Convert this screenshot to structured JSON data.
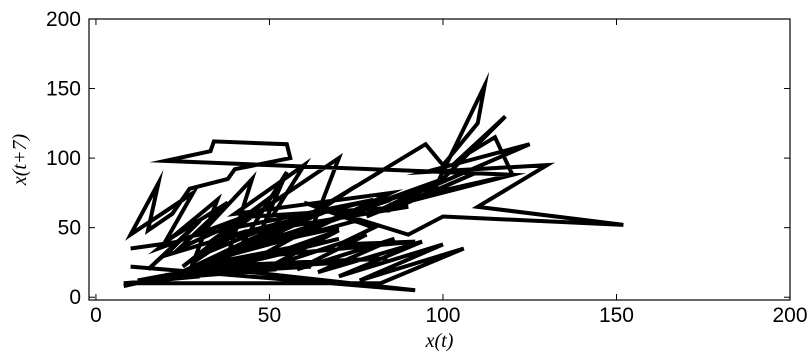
{
  "chart_data": {
    "type": "line",
    "title": "",
    "xlabel": "x(t)",
    "ylabel": "x(t+7)",
    "xlim": [
      -2,
      200
    ],
    "ylim": [
      -2,
      200
    ],
    "xticks": [
      0,
      50,
      100,
      150,
      200
    ],
    "yticks": [
      0,
      50,
      100,
      150,
      200
    ],
    "grid": false,
    "legend": "none",
    "line_color": "#000000",
    "series": [
      {
        "x": [
          10,
          24,
          15,
          30,
          20,
          40,
          28,
          35,
          18,
          45,
          25,
          52,
          33,
          60,
          38,
          45,
          30,
          70,
          42,
          55,
          48,
          35,
          80,
          50,
          60,
          40,
          85,
          62,
          70,
          45,
          90,
          58,
          75,
          52,
          95,
          100,
          110,
          112,
          98,
          118,
          105,
          115,
          120,
          88,
          125,
          95,
          130,
          110,
          152,
          100,
          90,
          60,
          80,
          70,
          92,
          50,
          70,
          35,
          60,
          20,
          45,
          15,
          30,
          8,
          25,
          12,
          40,
          18,
          55,
          22,
          65,
          28,
          50,
          32,
          75,
          38,
          60,
          42,
          70,
          48,
          85,
          55,
          90,
          62,
          95,
          68,
          80,
          72,
          100,
          78,
          92,
          84,
          110,
          88,
          98,
          92,
          120,
          20,
          33,
          34,
          55,
          56,
          40,
          38,
          27,
          22,
          15,
          18,
          10,
          28,
          20,
          38,
          24,
          46,
          30,
          54,
          36,
          62,
          44,
          70,
          50,
          78,
          58,
          86,
          64,
          94,
          70,
          100,
          76,
          106,
          82,
          8,
          30,
          12,
          42,
          16,
          52,
          20,
          62,
          24,
          72,
          26,
          84,
          30,
          92,
          10
        ],
        "y": [
          35,
          40,
          20,
          55,
          30,
          45,
          25,
          70,
          35,
          60,
          22,
          75,
          40,
          55,
          30,
          85,
          45,
          65,
          38,
          90,
          50,
          42,
          70,
          55,
          95,
          60,
          75,
          48,
          100,
          58,
          65,
          52,
          80,
          45,
          110,
          95,
          125,
          152,
          80,
          130,
          100,
          115,
          88,
          70,
          110,
          90,
          95,
          65,
          52,
          58,
          45,
          68,
          50,
          38,
          40,
          30,
          42,
          20,
          35,
          15,
          28,
          10,
          20,
          8,
          18,
          12,
          25,
          14,
          32,
          16,
          40,
          22,
          48,
          26,
          55,
          30,
          60,
          35,
          50,
          40,
          70,
          45,
          75,
          50,
          80,
          55,
          65,
          60,
          85,
          58,
          72,
          62,
          90,
          66,
          78,
          70,
          88,
          98,
          105,
          112,
          110,
          100,
          92,
          85,
          78,
          60,
          48,
          82,
          45,
          75,
          40,
          68,
          35,
          60,
          30,
          55,
          28,
          50,
          25,
          48,
          22,
          45,
          20,
          42,
          18,
          40,
          15,
          38,
          12,
          35,
          10,
          10,
          15,
          12,
          18,
          14,
          20,
          16,
          22,
          18,
          25,
          20,
          28,
          22,
          5,
          22
        ]
      }
    ]
  }
}
